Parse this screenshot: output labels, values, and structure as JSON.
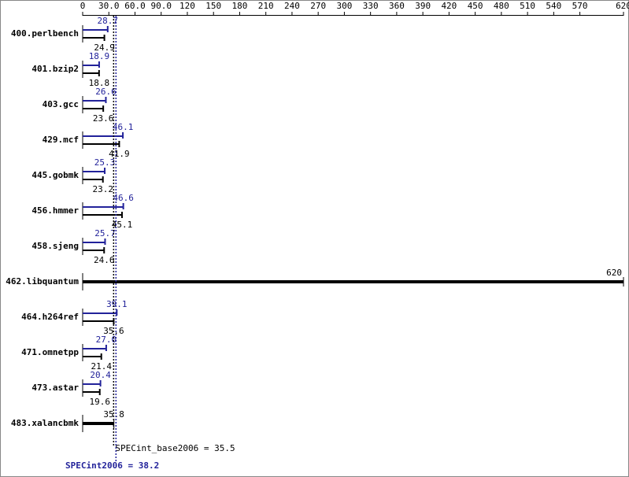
{
  "chart_data": {
    "type": "bar",
    "categories": [
      "400.perlbench",
      "401.bzip2",
      "403.gcc",
      "429.mcf",
      "445.gobmk",
      "456.hmmer",
      "458.sjeng",
      "462.libquantum",
      "464.h264ref",
      "471.omnetpp",
      "473.astar",
      "483.xalancbmk"
    ],
    "series": [
      {
        "name": "SPECint2006",
        "color": "#22229a",
        "values": [
          28.7,
          18.9,
          26.6,
          46.1,
          25.3,
          46.6,
          25.7,
          620,
          39.1,
          27.0,
          20.4,
          35.8
        ],
        "value_labels": [
          "28.7",
          "18.9",
          "26.6",
          "46.1",
          "25.3",
          "46.6",
          "25.7",
          "620",
          "39.1",
          "27.0",
          "20.4",
          "35.8"
        ]
      },
      {
        "name": "SPECint_base2006",
        "color": "#000000",
        "values": [
          24.9,
          18.8,
          23.6,
          41.9,
          23.2,
          45.1,
          24.6,
          620,
          35.6,
          21.4,
          19.6,
          35.8
        ]
      }
    ],
    "xlim": [
      0,
      620
    ],
    "xticks": [
      0,
      {
        "value": 30,
        "label": "30.0"
      },
      {
        "value": 60,
        "label": "60.0"
      },
      {
        "value": 90,
        "label": "90.0"
      },
      120,
      150,
      180,
      210,
      240,
      270,
      300,
      330,
      360,
      390,
      420,
      450,
      480,
      510,
      540,
      570,
      620
    ],
    "annotations": [
      {
        "text": "SPECint_base2006 = 35.5",
        "value": 35.5,
        "color": "#000000"
      },
      {
        "text": "SPECint2006 = 38.2",
        "value": 38.2,
        "color": "#22229a"
      }
    ]
  }
}
